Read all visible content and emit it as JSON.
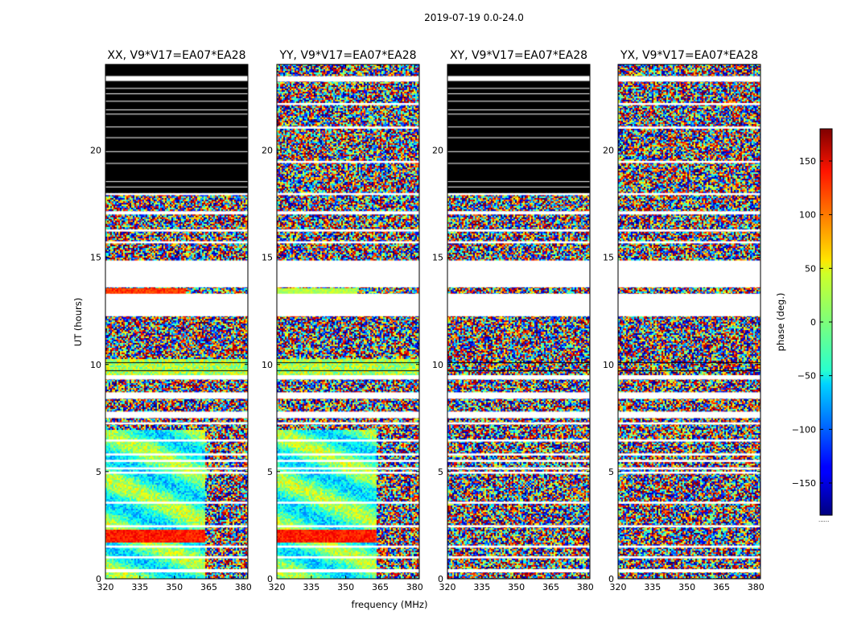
{
  "figure": {
    "suptitle": "2019-07-19 0.0-24.0",
    "xlabel": "frequency (MHz)",
    "ylabel": "UT (hours)",
    "colorbar_label": "phase (deg.)",
    "colorbar_footer": "......"
  },
  "chart_data": {
    "type": "heatmap",
    "title": "2019-07-19 0.0-24.0",
    "xlabel": "frequency (MHz)",
    "ylabel": "UT (hours)",
    "xlim": [
      320,
      382
    ],
    "ylim": [
      0,
      24
    ],
    "x_ticks": [
      320,
      335,
      350,
      365,
      380
    ],
    "x_tick_labels": [
      "320",
      "335",
      "350",
      "365",
      "380"
    ],
    "y_ticks": [
      0,
      5,
      10,
      15,
      20
    ],
    "y_tick_labels": [
      "0",
      "5",
      "10",
      "15",
      "20"
    ],
    "colorbar": {
      "label": "phase (deg.)",
      "range": [
        -180,
        180
      ],
      "ticks": [
        -150,
        -100,
        -50,
        0,
        50,
        100,
        150
      ],
      "tick_labels": [
        "−150",
        "−100",
        "−50",
        "0",
        "50",
        "100",
        "150"
      ],
      "colormap": "jet"
    },
    "panels": [
      {
        "title": "XX, V9*V17=EA07*EA28",
        "polarization": "XX",
        "black_above_ut": 18.0,
        "coherent": true,
        "noise_seed": 11
      },
      {
        "title": "YY, V9*V17=EA07*EA28",
        "polarization": "YY",
        "black_above_ut": null,
        "coherent": true,
        "noise_seed": 23
      },
      {
        "title": "XY, V9*V17=EA07*EA28",
        "polarization": "XY",
        "black_above_ut": 18.0,
        "coherent": false,
        "noise_seed": 37
      },
      {
        "title": "YX, V9*V17=EA07*EA28",
        "polarization": "YX",
        "black_above_ut": null,
        "coherent": false,
        "noise_seed": 53
      }
    ],
    "flagged_ut_ranges": [
      [
        0.3,
        0.45
      ],
      [
        0.95,
        1.05
      ],
      [
        1.45,
        1.55
      ],
      [
        2.4,
        2.5
      ],
      [
        3.5,
        3.6
      ],
      [
        4.9,
        5.0
      ],
      [
        5.1,
        5.2
      ],
      [
        5.45,
        5.55
      ],
      [
        5.75,
        5.85
      ],
      [
        6.4,
        6.5
      ],
      [
        7.2,
        7.3
      ],
      [
        7.5,
        7.8
      ],
      [
        8.4,
        8.7
      ],
      [
        9.3,
        9.5
      ],
      [
        12.25,
        13.3
      ],
      [
        13.6,
        14.85
      ],
      [
        15.65,
        15.75
      ],
      [
        16.2,
        16.3
      ],
      [
        17.0,
        17.15
      ],
      [
        17.9,
        18.0
      ],
      [
        19.4,
        19.5
      ],
      [
        21.0,
        21.1
      ],
      [
        22.1,
        22.2
      ],
      [
        23.2,
        23.45
      ]
    ]
  }
}
